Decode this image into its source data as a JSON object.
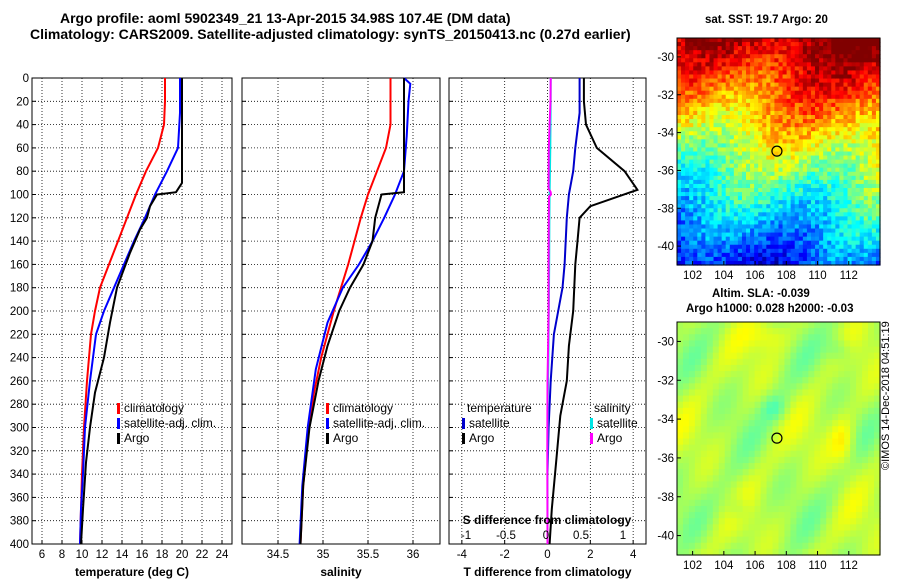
{
  "header": {
    "title_line1": "Argo profile: aoml 5902349_21 13-Apr-2015 34.98S 107.4E (DM data)",
    "title_line2": "Climatology: CARS2009. Satellite-adjusted climatology: synTS_20150413.nc (0.27d earlier)"
  },
  "colors": {
    "climatology": "#ff0000",
    "satellite": "#0000ff",
    "argo": "#000000",
    "sat_temperature": "#0000cc",
    "sat_salinity": "#00e5e5",
    "argo_salinity": "#ff00ff"
  },
  "map_titles": {
    "sst": "sat. SST: 19.7 Argo: 20",
    "sla_line1": "Altim. SLA: -0.039",
    "sla_line2": "Argo h1000: 0.028 h2000: -0.03"
  },
  "footer": {
    "credit": "©IMOS 14-Dec-2018 04:51:19"
  },
  "chart_data": [
    {
      "type": "line",
      "id": "temperature",
      "xlabel": "temperature (deg C)",
      "ylabel": "",
      "xlim": [
        5,
        25
      ],
      "ylim": [
        400,
        0
      ],
      "xticks": [
        6,
        8,
        10,
        12,
        14,
        16,
        18,
        20,
        22,
        24
      ],
      "yticks": [
        0,
        20,
        40,
        60,
        80,
        100,
        120,
        140,
        160,
        180,
        200,
        220,
        240,
        260,
        280,
        300,
        320,
        340,
        360,
        380,
        400
      ],
      "legend": [
        "climatology",
        "satellite-adj. clim.",
        "Argo"
      ],
      "series": [
        {
          "name": "climatology",
          "color": "#ff0000",
          "x": [
            18.3,
            18.3,
            18.2,
            17.6,
            16.4,
            15.4,
            14.5,
            13.6,
            12.7,
            11.8,
            11.3,
            10.9,
            10.5,
            10.2,
            10.0,
            9.9,
            9.8
          ],
          "y": [
            0,
            20,
            40,
            60,
            80,
            100,
            120,
            140,
            160,
            180,
            200,
            220,
            260,
            300,
            340,
            370,
            400
          ]
        },
        {
          "name": "satellite-adj. clim.",
          "color": "#0000ff",
          "x": [
            19.8,
            19.8,
            19.8,
            19.6,
            18.5,
            17.3,
            16.3,
            15.2,
            14.2,
            13.2,
            12.2,
            11.4,
            10.8,
            10.3,
            10.1,
            9.9,
            9.8
          ],
          "y": [
            0,
            20,
            30,
            60,
            80,
            100,
            120,
            140,
            160,
            180,
            200,
            220,
            260,
            300,
            340,
            370,
            400
          ]
        },
        {
          "name": "Argo",
          "color": "#000000",
          "x": [
            20.0,
            20.0,
            20.0,
            20.0,
            20.0,
            19.4,
            17.5,
            16.8,
            16.5,
            15.8,
            14.8,
            13.5,
            12.8,
            12.2,
            11.3,
            10.8,
            10.4,
            10.1,
            9.9
          ],
          "y": [
            0,
            20,
            40,
            60,
            90,
            98,
            100,
            110,
            120,
            130,
            150,
            180,
            210,
            240,
            270,
            300,
            330,
            370,
            400
          ]
        }
      ]
    },
    {
      "type": "line",
      "id": "salinity",
      "xlabel": "salinity",
      "ylabel": "",
      "xlim": [
        34.1,
        36.3
      ],
      "ylim": [
        400,
        0
      ],
      "xticks": [
        34.5,
        35,
        35.5,
        36
      ],
      "legend": [
        "climatology",
        "satellite-adj. clim.",
        "Argo"
      ],
      "series": [
        {
          "name": "climatology",
          "color": "#ff0000",
          "x": [
            35.75,
            35.75,
            35.75,
            35.7,
            35.6,
            35.5,
            35.42,
            35.35,
            35.28,
            35.2,
            35.12,
            35.05,
            34.98,
            34.9,
            34.83,
            34.78,
            34.75
          ],
          "y": [
            0,
            20,
            40,
            60,
            80,
            100,
            120,
            140,
            160,
            180,
            200,
            220,
            240,
            270,
            310,
            350,
            400
          ]
        },
        {
          "name": "satellite-adj. clim.",
          "color": "#0000ff",
          "x": [
            35.9,
            35.97,
            35.95,
            35.93,
            35.9,
            35.8,
            35.68,
            35.55,
            35.4,
            35.22,
            35.05,
            34.92,
            34.83,
            34.77,
            34.74
          ],
          "y": [
            0,
            5,
            20,
            50,
            80,
            100,
            120,
            140,
            160,
            180,
            210,
            250,
            300,
            350,
            400
          ]
        },
        {
          "name": "Argo",
          "color": "#000000",
          "x": [
            35.9,
            35.9,
            35.9,
            35.9,
            35.65,
            35.58,
            35.55,
            35.45,
            35.3,
            35.18,
            35.05,
            34.95,
            34.85,
            34.78,
            34.75
          ],
          "y": [
            0,
            20,
            60,
            98,
            100,
            120,
            140,
            160,
            180,
            200,
            230,
            260,
            300,
            350,
            400
          ]
        }
      ]
    },
    {
      "type": "line",
      "id": "difference",
      "xlabel": "T difference from climatology",
      "xlabel_top": "S difference from climatology",
      "xlim": [
        -4.6,
        4.6
      ],
      "ylim": [
        400,
        0
      ],
      "xticks": [
        -4,
        -2,
        0,
        2,
        4
      ],
      "xticks_top": [
        "-1",
        "-0.5",
        "0",
        "0.5",
        "1"
      ],
      "legend_left": [
        "temperature",
        "satellite",
        "Argo"
      ],
      "legend_right": [
        "salinity",
        "satellite",
        "Argo"
      ],
      "series": [
        {
          "name": "T satellite",
          "color": "#0000cc",
          "x": [
            1.5,
            1.5,
            1.5,
            1.3,
            1.2,
            1.0,
            0.9,
            0.85,
            0.8,
            0.7,
            0.5,
            0.3,
            0.15,
            0.05,
            0.0,
            0.0,
            0.0
          ],
          "y": [
            0,
            20,
            30,
            60,
            80,
            100,
            120,
            140,
            160,
            180,
            200,
            220,
            260,
            300,
            340,
            370,
            400
          ]
        },
        {
          "name": "T Argo",
          "color": "#000000",
          "x": [
            1.7,
            1.7,
            1.8,
            2.3,
            3.6,
            4.2,
            2.0,
            1.5,
            1.4,
            1.3,
            1.2,
            1.0,
            0.9,
            0.6,
            0.4,
            0.2,
            0.1
          ],
          "y": [
            0,
            20,
            40,
            60,
            80,
            96,
            110,
            120,
            140,
            160,
            200,
            230,
            260,
            290,
            330,
            370,
            400
          ]
        },
        {
          "name": "S satellite",
          "color": "#00e5e5",
          "x": [
            0.15,
            0.15,
            0.13,
            0.1,
            0.09,
            0.08,
            0.06,
            0.04,
            0.01,
            0.0,
            0.0,
            0.0
          ],
          "y": [
            0,
            20,
            60,
            100,
            120,
            160,
            200,
            240,
            280,
            320,
            360,
            400
          ]
        },
        {
          "name": "S Argo",
          "color": "#ff00ff",
          "x": [
            0.15,
            0.14,
            0.1,
            0.06,
            0.05,
            0.15,
            0.16,
            0.07,
            0.06,
            0.05,
            0.05,
            0.03,
            0.0,
            -0.01,
            0.0
          ],
          "y": [
            0,
            20,
            40,
            60,
            95,
            98,
            100,
            102,
            120,
            160,
            200,
            230,
            260,
            320,
            400
          ]
        }
      ]
    },
    {
      "type": "heatmap",
      "id": "sst-map",
      "title": "sat. SST: 19.7 Argo: 20",
      "xlim": [
        101,
        114
      ],
      "ylim": [
        -41,
        -29
      ],
      "xticks": [
        102,
        104,
        106,
        108,
        110,
        112
      ],
      "yticks": [
        -30,
        -32,
        -34,
        -36,
        -38,
        -40
      ],
      "marker": {
        "x": 107.4,
        "y": -34.98
      }
    },
    {
      "type": "heatmap",
      "id": "sla-map",
      "title": "Altim. SLA: -0.039",
      "xlim": [
        101,
        114
      ],
      "ylim": [
        -41,
        -29
      ],
      "xticks": [
        102,
        104,
        106,
        108,
        110,
        112
      ],
      "yticks": [
        -30,
        -32,
        -34,
        -36,
        -38,
        -40
      ],
      "marker": {
        "x": 107.4,
        "y": -34.98
      }
    }
  ]
}
